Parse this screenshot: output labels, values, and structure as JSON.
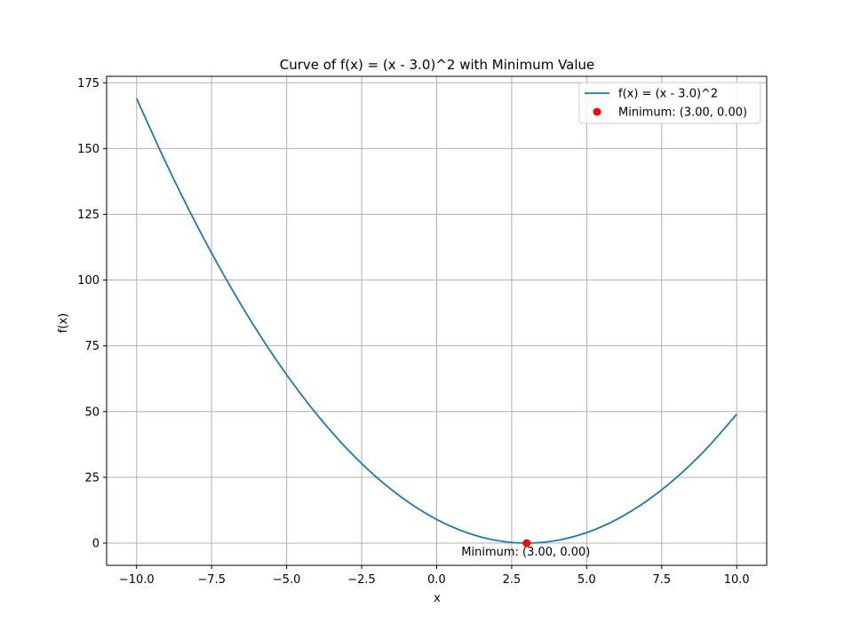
{
  "chart_data": {
    "type": "line",
    "title": "Curve of f(x) = (x - 3.0)^2 with Minimum Value",
    "xlabel": "x",
    "ylabel": "f(x)",
    "xlim": [
      -11.0,
      11.0
    ],
    "ylim": [
      -8.45,
      177.45
    ],
    "grid": true,
    "legend_position": "top-right",
    "x_ticks": [
      {
        "value": -10.0,
        "label": "−10.0"
      },
      {
        "value": -7.5,
        "label": "−7.5"
      },
      {
        "value": -5.0,
        "label": "−5.0"
      },
      {
        "value": -2.5,
        "label": "−2.5"
      },
      {
        "value": 0.0,
        "label": "0.0"
      },
      {
        "value": 2.5,
        "label": "2.5"
      },
      {
        "value": 5.0,
        "label": "5.0"
      },
      {
        "value": 7.5,
        "label": "7.5"
      },
      {
        "value": 10.0,
        "label": "10.0"
      }
    ],
    "y_ticks": [
      {
        "value": 0,
        "label": "0"
      },
      {
        "value": 25,
        "label": "25"
      },
      {
        "value": 50,
        "label": "50"
      },
      {
        "value": 75,
        "label": "75"
      },
      {
        "value": 100,
        "label": "100"
      },
      {
        "value": 125,
        "label": "125"
      },
      {
        "value": 150,
        "label": "150"
      },
      {
        "value": 175,
        "label": "175"
      }
    ],
    "series": [
      {
        "name": "f(x) = (x - 3.0)^2",
        "kind": "line",
        "color": "#1f77b4",
        "x": [
          -10,
          -9,
          -8,
          -7,
          -6,
          -5,
          -4,
          -3,
          -2,
          -1,
          0,
          1,
          2,
          3,
          4,
          5,
          6,
          7,
          8,
          9,
          10
        ],
        "y": [
          169,
          144,
          121,
          100,
          81,
          64,
          49,
          36,
          25,
          16,
          9,
          4,
          1,
          0,
          1,
          4,
          9,
          16,
          25,
          36,
          49
        ]
      },
      {
        "name": "Minimum: (3.00, 0.00)",
        "kind": "scatter",
        "color": "#ff0000",
        "x": [
          3.0
        ],
        "y": [
          0.0
        ]
      }
    ],
    "annotations": [
      {
        "text": "Minimum: (3.00, 0.00)",
        "x": 3.0,
        "y": 0.0
      }
    ]
  }
}
